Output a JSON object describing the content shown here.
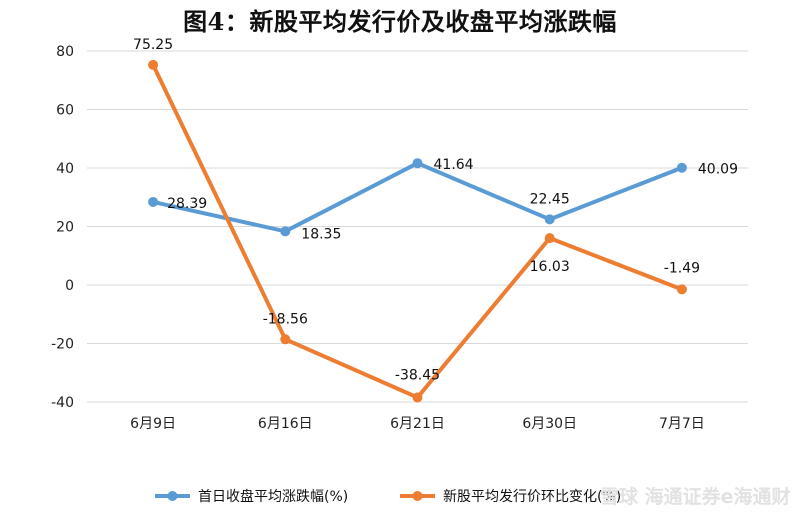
{
  "title": "图4：新股平均发行价及收盘平均涨跌幅",
  "chart_data": {
    "type": "line",
    "title": "图4：新股平均发行价及收盘平均涨跌幅",
    "xlabel": "",
    "ylabel": "",
    "categories": [
      "6月9日",
      "6月16日",
      "6月21日",
      "6月30日",
      "7月7日"
    ],
    "ylim": [
      -40,
      80
    ],
    "yticks": [
      -40,
      -20,
      0,
      20,
      40,
      60,
      80
    ],
    "grid": true,
    "legend_position": "bottom",
    "series": [
      {
        "name": "首日收盘平均涨跌幅(%)",
        "color": "#5b9bd5",
        "values": [
          28.39,
          18.35,
          41.64,
          22.45,
          40.09
        ],
        "labels": [
          "28.39",
          "18.35",
          "41.64",
          "22.45",
          "40.09"
        ]
      },
      {
        "name": "新股平均发行价环比变化(%)",
        "color": "#ed7d31",
        "values": [
          75.25,
          -18.56,
          -38.45,
          16.03,
          -1.49
        ],
        "labels": [
          "75.25",
          "-18.56",
          "-38.45",
          "16.03",
          "-1.49"
        ]
      }
    ]
  },
  "watermark": "雪球 海通证券e海通财"
}
